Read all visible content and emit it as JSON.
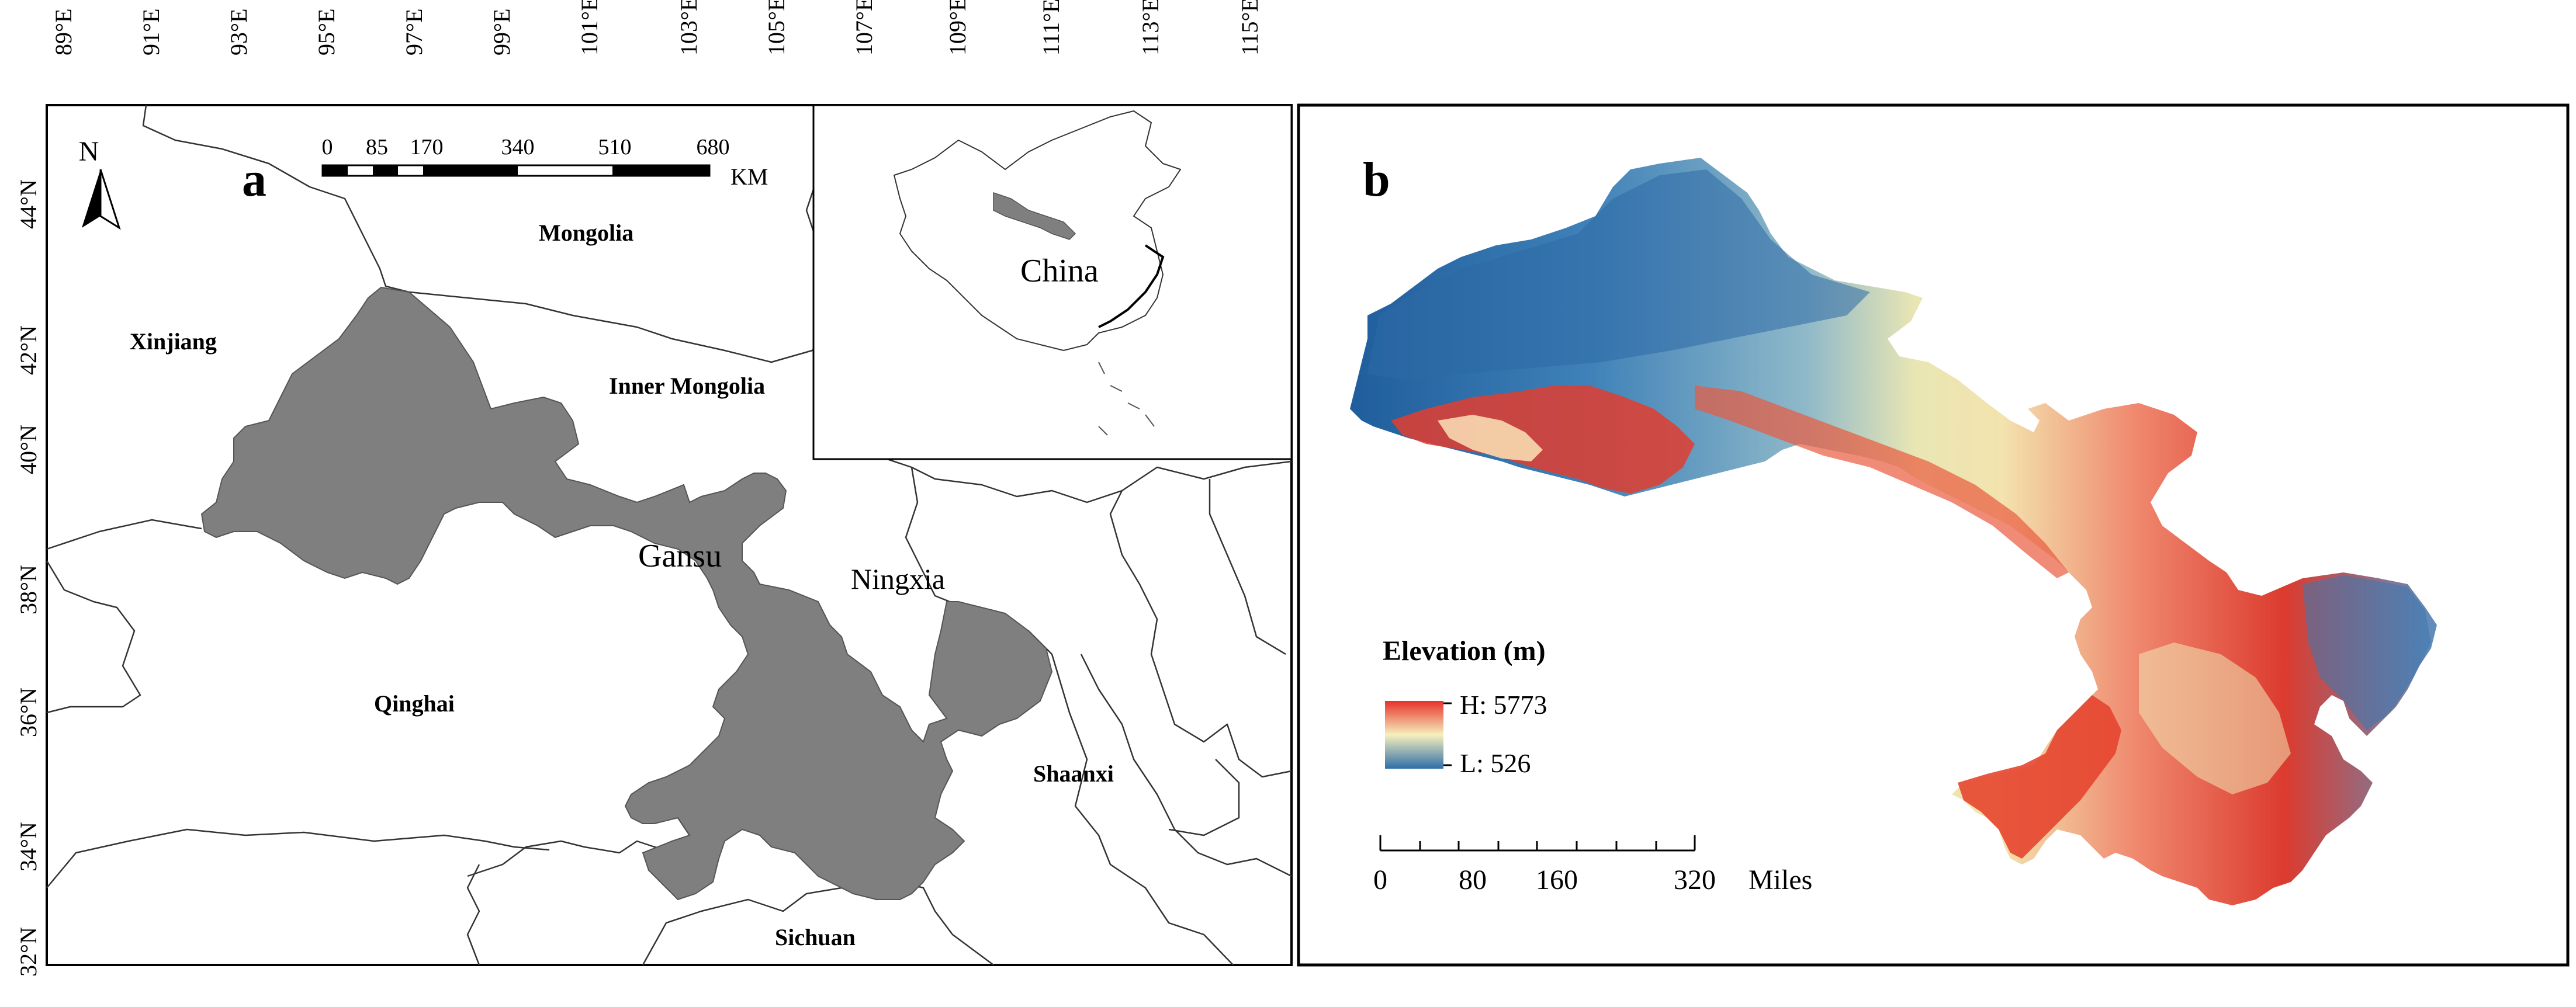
{
  "panel_a": {
    "letter": "a",
    "north_label": "N",
    "lon_labels": [
      "89°E",
      "91°E",
      "93°E",
      "95°E",
      "97°E",
      "99°E",
      "101°E",
      "103°E",
      "105°E",
      "107°E",
      "109°E",
      "111°E",
      "113°E",
      "115°E"
    ],
    "lat_labels": [
      "44°N",
      "42°N",
      "40°N",
      "38°N",
      "36°N",
      "34°N",
      "32°N"
    ],
    "scalebar": {
      "ticks": [
        "0",
        "85",
        "170",
        "340",
        "510",
        "680"
      ],
      "unit": "KM"
    },
    "regions": {
      "mongolia": "Mongolia",
      "xinjiang": "Xinjiang",
      "inner_mongolia": "Inner Mongolia",
      "gansu": "Gansu",
      "ningxia": "Ningxia",
      "qinghai": "Qinghai",
      "shaanxi": "Shaanxi",
      "sichuan": "Sichuan"
    },
    "inset_label": "China",
    "colors": {
      "gansu_fill": "#7f7f7f",
      "border": "#333333"
    }
  },
  "panel_b": {
    "letter": "b",
    "legend": {
      "title": "Elevation (m)",
      "high": "H: 5773",
      "low": "L: 526"
    },
    "scalebar": {
      "ticks": [
        "0",
        "80",
        "160",
        "320"
      ],
      "unit": "Miles"
    },
    "colors": {
      "high": "#e8312a",
      "mid": "#f5efb5",
      "low": "#2f6ea8"
    }
  }
}
